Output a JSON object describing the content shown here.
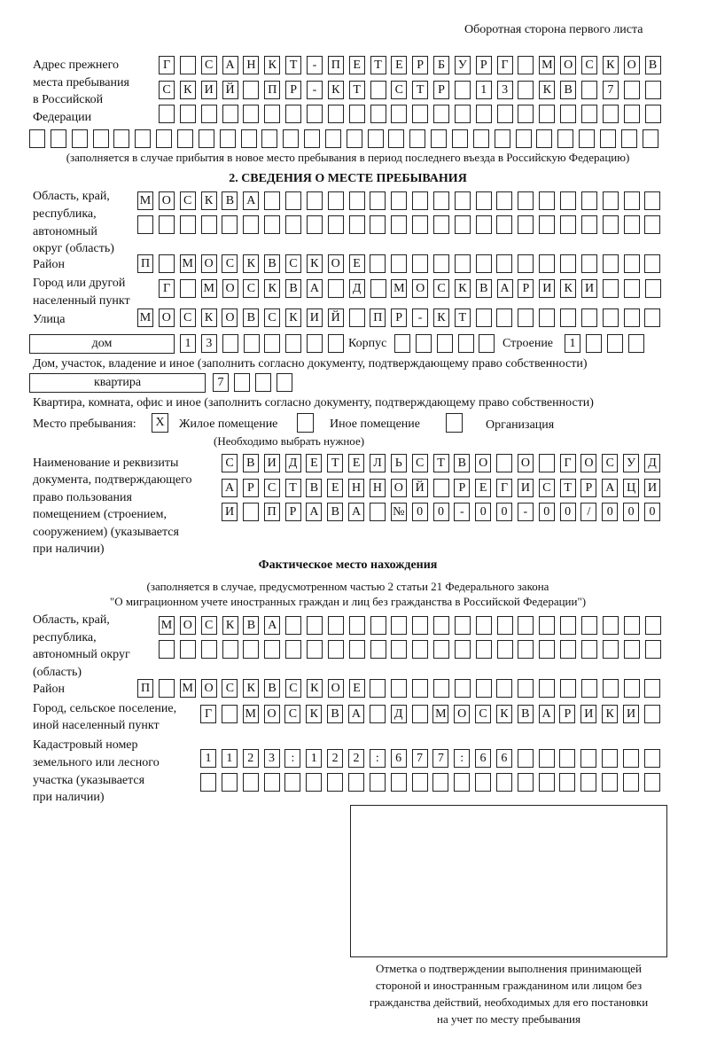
{
  "header": "Оборотная сторона первого листа",
  "previous": {
    "label": [
      "Адрес прежнего",
      "места пребывания",
      "в Российской",
      "Федерации"
    ],
    "rows": [
      "Г САНКТ-ПЕТЕРБУРГ МОСКОВ",
      "СКИЙ ПР-КТ СТР 13 КВ 7",
      "",
      ""
    ],
    "note": "(заполняется в случае прибытия в новое место пребывания в период последнего въезда в Российскую Федерацию)"
  },
  "section2": {
    "title": "2. СВЕДЕНИЯ О МЕСТЕ ПРЕБЫВАНИЯ",
    "region_label": [
      "Область, край,",
      "республика,",
      "автономный",
      "округ (область)"
    ],
    "region_rows": [
      "МОСКВА",
      ""
    ],
    "district_label": "Район",
    "district": "П МОСКВСКОЕ",
    "city_label": [
      "Город или другой",
      "населенный пункт"
    ],
    "city": "Г МОСКВА Д МОСКВАРИКИ",
    "street_label": "Улица",
    "street": "МОСКОВСКИЙ ПР-КТ",
    "house_type": "дом",
    "house": "13",
    "korpus_label": "Корпус",
    "korpus": "",
    "building_label": "Строение",
    "building": "1",
    "house_caption": "Дом, участок, владение и иное (заполнить согласно документу, подтверждающему право собственности)",
    "flat_type": "квартира",
    "flat": "7",
    "flat_caption": "Квартира, комната, офис и иное (заполнить согласно документу, подтверждающему право собственности)",
    "stay_label": "Место пребывания:",
    "options": [
      {
        "label": "Жилое помещение",
        "mark": "X"
      },
      {
        "label": "Иное помещение",
        "mark": ""
      },
      {
        "label": "Организация",
        "mark": ""
      }
    ],
    "choose_note": "(Необходимо выбрать нужное)",
    "doc_label": [
      "Наименование и реквизиты",
      "документа, подтверждающего",
      "право пользования",
      "помещением (строением,",
      "сооружением) (указывается",
      "при наличии)"
    ],
    "doc_rows": [
      "СВИДЕТЕЛЬСТВО О ГОСУД",
      "АРСТВЕННОЙ РЕГИСТРАЦИ",
      "И ПРАВА №00-00-00/000"
    ]
  },
  "actual": {
    "title": "Фактическое место нахождения",
    "note": [
      "(заполняется в случае, предусмотренном частью 2 статьи 21 Федерального закона",
      "\"О миграционном учете иностранных граждан и лиц без гражданства в Российской Федерации\")"
    ],
    "region_label": [
      "Область, край,",
      "республика,",
      "автономный округ",
      "(область)"
    ],
    "region_rows": [
      "МОСКВА",
      ""
    ],
    "district_label": "Район",
    "district": "П МОСКВСКОЕ",
    "city_label": [
      "Город, сельское поселение,",
      "иной населенный пункт"
    ],
    "city": "Г МОСКВА Д МОСКВАРИКИ",
    "cadastre_label": [
      "Кадастровый номер",
      "земельного или лесного",
      "участка (указывается",
      "при наличии)"
    ],
    "cadastre_rows": [
      "1123:122:677:66",
      ""
    ]
  },
  "stamp": {
    "caption": [
      "Отметка о подтверждении выполнения принимающей",
      "стороной и иностранным гражданином или лицом без",
      "гражданства действий, необходимых для его постановки",
      "на учет по месту пребывания"
    ]
  }
}
